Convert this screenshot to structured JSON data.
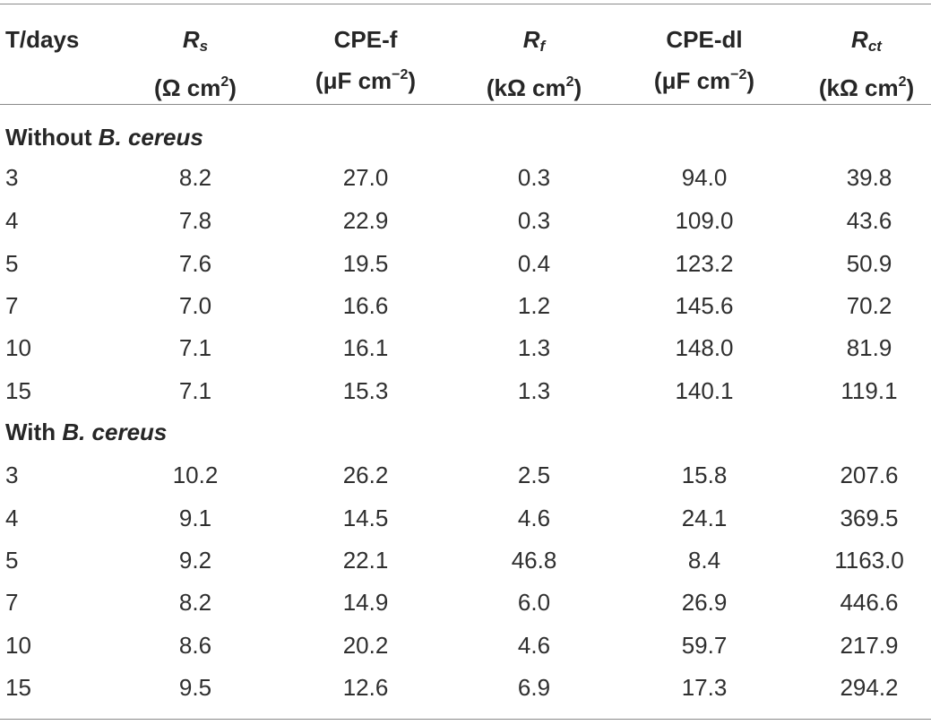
{
  "table": {
    "headers": [
      {
        "line1": "T/days",
        "line2": ""
      },
      {
        "sym": "R",
        "sub": "s",
        "unit_pre": "(Ω cm",
        "unit_sup": "2",
        "unit_post": ")"
      },
      {
        "line1": "CPE-f",
        "unit_pre": "(μF cm",
        "unit_sup": "−2",
        "unit_post": ")"
      },
      {
        "sym": "R",
        "sub": "f",
        "unit_pre": "(kΩ cm",
        "unit_sup": "2",
        "unit_post": ")"
      },
      {
        "line1": "CPE-dl",
        "unit_pre": "(μF cm",
        "unit_sup": "−2",
        "unit_post": ")"
      },
      {
        "sym": "R",
        "sub": "ct",
        "unit_pre": "(kΩ cm",
        "unit_sup": "2",
        "unit_post": ")"
      }
    ],
    "sections": [
      {
        "label_plain": "Without ",
        "label_italic": "B. cereus",
        "rows": [
          [
            "3",
            "8.2",
            "27.0",
            "0.3",
            "94.0",
            "39.8"
          ],
          [
            "4",
            "7.8",
            "22.9",
            "0.3",
            "109.0",
            "43.6"
          ],
          [
            "5",
            "7.6",
            "19.5",
            "0.4",
            "123.2",
            "50.9"
          ],
          [
            "7",
            "7.0",
            "16.6",
            "1.2",
            "145.6",
            "70.2"
          ],
          [
            "10",
            "7.1",
            "16.1",
            "1.3",
            "148.0",
            "81.9"
          ],
          [
            "15",
            "7.1",
            "15.3",
            "1.3",
            "140.1",
            "119.1"
          ]
        ]
      },
      {
        "label_plain": "With ",
        "label_italic": "B. cereus",
        "rows": [
          [
            "3",
            "10.2",
            "26.2",
            "2.5",
            "15.8",
            "207.6"
          ],
          [
            "4",
            "9.1",
            "14.5",
            "4.6",
            "24.1",
            "369.5"
          ],
          [
            "5",
            "9.2",
            "22.1",
            "46.8",
            "8.4",
            "1163.0"
          ],
          [
            "7",
            "8.2",
            "14.9",
            "6.0",
            "26.9",
            "446.6"
          ],
          [
            "10",
            "8.6",
            "20.2",
            "4.6",
            "59.7",
            "217.9"
          ],
          [
            "15",
            "9.5",
            "12.6",
            "6.9",
            "17.3",
            "294.2"
          ]
        ]
      }
    ]
  }
}
